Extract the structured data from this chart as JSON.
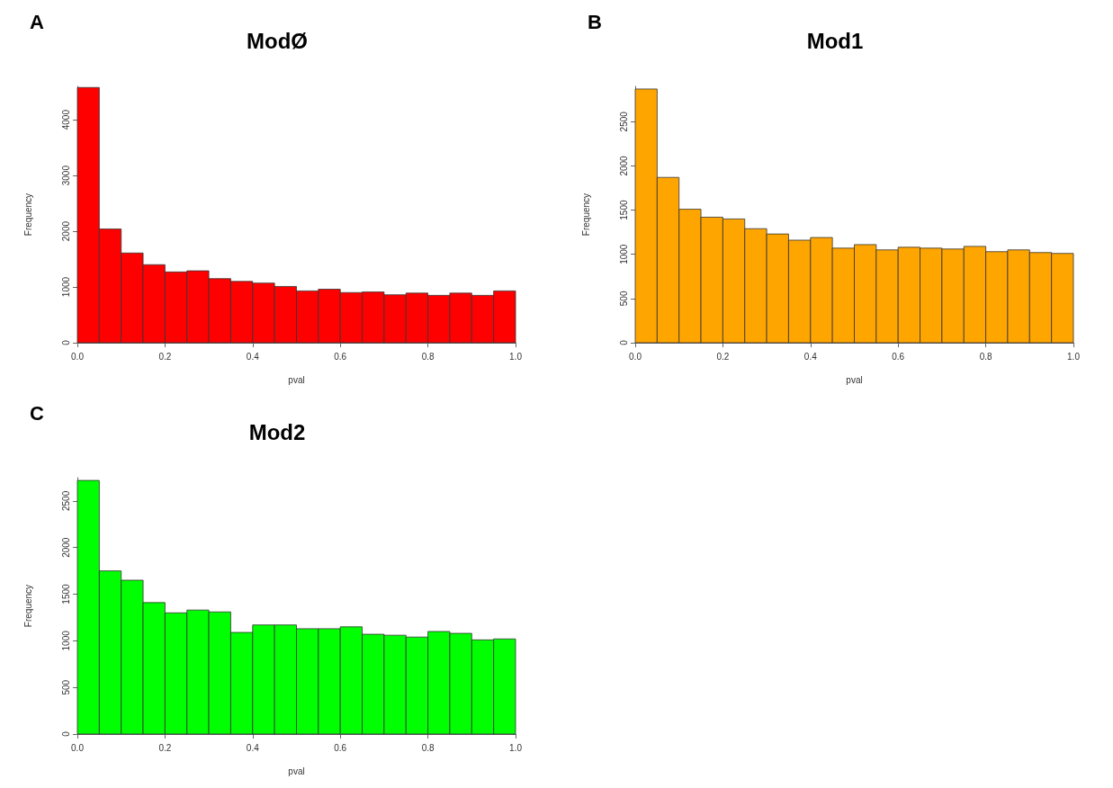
{
  "chart_data": [
    {
      "type": "histogram",
      "title": "ModØ",
      "xlabel": "pval",
      "ylabel": "Frequency",
      "annotations": [
        "A"
      ],
      "color": "#ff0000",
      "bins": [
        0,
        0.05,
        0.1,
        0.15,
        0.2,
        0.25,
        0.3,
        0.35,
        0.4,
        0.45,
        0.5,
        0.55,
        0.6,
        0.65,
        0.7,
        0.75,
        0.8,
        0.85,
        0.9,
        0.95,
        1.0
      ],
      "values": [
        4580,
        2040,
        1610,
        1400,
        1270,
        1290,
        1150,
        1100,
        1070,
        1010,
        930,
        960,
        900,
        910,
        860,
        890,
        850,
        890,
        850,
        930
      ],
      "xlim": [
        0,
        1
      ],
      "xticks": [
        {
          "value": 0,
          "label": "0.0"
        },
        {
          "value": 0.2,
          "label": "0.2"
        },
        {
          "value": 0.4,
          "label": "0.4"
        },
        {
          "value": 0.6,
          "label": "0.6"
        },
        {
          "value": 0.8,
          "label": "0.8"
        },
        {
          "value": 1,
          "label": "1.0"
        }
      ],
      "ylim": [
        0,
        4600
      ],
      "yticks": [
        0,
        1000,
        2000,
        3000,
        4000
      ]
    },
    {
      "type": "histogram",
      "title": "Mod1",
      "xlabel": "pval",
      "ylabel": "Frequency",
      "annotations": [
        "B"
      ],
      "color": "#ffa500",
      "bins": [
        0,
        0.05,
        0.1,
        0.15,
        0.2,
        0.25,
        0.3,
        0.35,
        0.4,
        0.45,
        0.5,
        0.55,
        0.6,
        0.65,
        0.7,
        0.75,
        0.8,
        0.85,
        0.9,
        0.95,
        1.0
      ],
      "values": [
        2870,
        1870,
        1510,
        1420,
        1400,
        1290,
        1230,
        1160,
        1190,
        1070,
        1110,
        1050,
        1080,
        1070,
        1060,
        1090,
        1030,
        1050,
        1020,
        1010
      ],
      "xlim": [
        0,
        1
      ],
      "xticks": [
        {
          "value": 0,
          "label": "0.0"
        },
        {
          "value": 0.2,
          "label": "0.2"
        },
        {
          "value": 0.4,
          "label": "0.4"
        },
        {
          "value": 0.6,
          "label": "0.6"
        },
        {
          "value": 0.8,
          "label": "0.8"
        },
        {
          "value": 1,
          "label": "1.0"
        }
      ],
      "ylim": [
        0,
        2900
      ],
      "yticks": [
        0,
        500,
        1000,
        1500,
        2000,
        2500
      ]
    },
    {
      "type": "histogram",
      "title": "Mod2",
      "xlabel": "pval",
      "ylabel": "Frequency",
      "annotations": [
        "C"
      ],
      "color": "#00ff00",
      "bins": [
        0,
        0.05,
        0.1,
        0.15,
        0.2,
        0.25,
        0.3,
        0.35,
        0.4,
        0.45,
        0.5,
        0.55,
        0.6,
        0.65,
        0.7,
        0.75,
        0.8,
        0.85,
        0.9,
        0.95,
        1.0
      ],
      "values": [
        2720,
        1750,
        1650,
        1410,
        1300,
        1330,
        1310,
        1090,
        1170,
        1170,
        1130,
        1130,
        1150,
        1070,
        1060,
        1040,
        1100,
        1080,
        1010,
        1020
      ],
      "xlim": [
        0,
        1
      ],
      "xticks": [
        {
          "value": 0,
          "label": "0.0"
        },
        {
          "value": 0.2,
          "label": "0.2"
        },
        {
          "value": 0.4,
          "label": "0.4"
        },
        {
          "value": 0.6,
          "label": "0.6"
        },
        {
          "value": 0.8,
          "label": "0.8"
        },
        {
          "value": 1,
          "label": "1.0"
        }
      ],
      "ylim": [
        0,
        2750
      ],
      "yticks": [
        0,
        500,
        1000,
        1500,
        2000,
        2500
      ]
    }
  ]
}
